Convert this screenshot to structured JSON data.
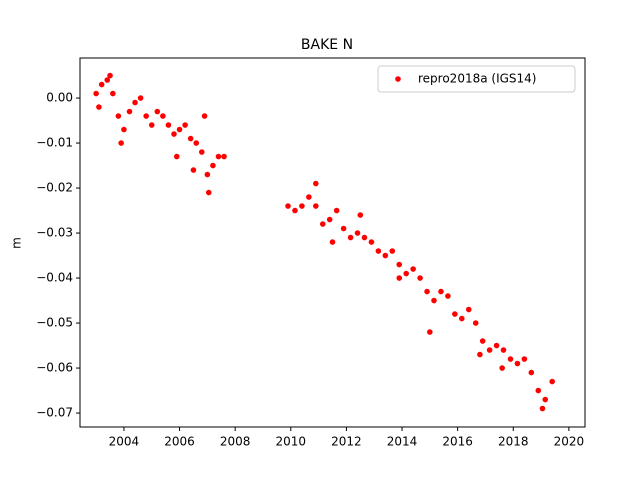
{
  "chart_data": {
    "type": "scatter",
    "title": "BAKE N",
    "ylabel": "m",
    "xlim": [
      2002.42,
      2020.58
    ],
    "ylim": [
      -0.0731,
      0.0089
    ],
    "xticks": [
      2004,
      2006,
      2008,
      2010,
      2012,
      2014,
      2016,
      2018,
      2020
    ],
    "yticks": [
      {
        "value": 0.0,
        "label": "0.00"
      },
      {
        "value": -0.01,
        "label": "−0.01"
      },
      {
        "value": -0.02,
        "label": "−0.02"
      },
      {
        "value": -0.03,
        "label": "−0.03"
      },
      {
        "value": -0.04,
        "label": "−0.04"
      },
      {
        "value": -0.05,
        "label": "−0.05"
      },
      {
        "value": -0.06,
        "label": "−0.06"
      },
      {
        "value": -0.07,
        "label": "−0.07"
      }
    ],
    "grid": false,
    "legend": "upper right",
    "series": [
      {
        "name": "repro2018a (IGS14)",
        "color": "#ff0000",
        "x": [
          2003.0,
          2003.1,
          2003.2,
          2003.4,
          2003.5,
          2003.6,
          2003.8,
          2003.9,
          2004.0,
          2004.2,
          2004.4,
          2004.6,
          2004.8,
          2005.0,
          2005.2,
          2005.4,
          2005.6,
          2005.8,
          2005.9,
          2006.0,
          2006.2,
          2006.4,
          2006.5,
          2006.6,
          2006.8,
          2006.9,
          2007.0,
          2007.05,
          2007.2,
          2007.4,
          2007.6,
          2009.9,
          2010.15,
          2010.4,
          2010.65,
          2010.9,
          2010.9,
          2011.15,
          2011.4,
          2011.5,
          2011.65,
          2011.9,
          2012.15,
          2012.4,
          2012.5,
          2012.65,
          2012.9,
          2013.15,
          2013.4,
          2013.65,
          2013.9,
          2013.9,
          2014.15,
          2014.4,
          2014.65,
          2014.9,
          2015.0,
          2015.15,
          2015.4,
          2015.65,
          2015.9,
          2016.15,
          2016.4,
          2016.65,
          2016.8,
          2016.9,
          2017.15,
          2017.4,
          2017.6,
          2017.65,
          2017.9,
          2018.15,
          2018.4,
          2018.65,
          2018.9,
          2019.05,
          2019.15,
          2019.4
        ],
        "values": [
          0.001,
          -0.002,
          0.003,
          0.004,
          0.005,
          0.001,
          -0.004,
          -0.01,
          -0.007,
          -0.003,
          -0.001,
          0.0,
          -0.004,
          -0.006,
          -0.003,
          -0.004,
          -0.006,
          -0.008,
          -0.013,
          -0.007,
          -0.006,
          -0.009,
          -0.016,
          -0.01,
          -0.012,
          -0.004,
          -0.017,
          -0.021,
          -0.015,
          -0.013,
          -0.013,
          -0.024,
          -0.025,
          -0.024,
          -0.022,
          -0.024,
          -0.019,
          -0.028,
          -0.027,
          -0.032,
          -0.025,
          -0.029,
          -0.031,
          -0.03,
          -0.026,
          -0.031,
          -0.032,
          -0.034,
          -0.035,
          -0.034,
          -0.037,
          -0.04,
          -0.039,
          -0.038,
          -0.04,
          -0.043,
          -0.052,
          -0.045,
          -0.043,
          -0.044,
          -0.048,
          -0.049,
          -0.047,
          -0.05,
          -0.057,
          -0.054,
          -0.056,
          -0.055,
          -0.06,
          -0.056,
          -0.058,
          -0.059,
          -0.058,
          -0.061,
          -0.065,
          -0.069,
          -0.067,
          -0.063
        ]
      }
    ]
  }
}
